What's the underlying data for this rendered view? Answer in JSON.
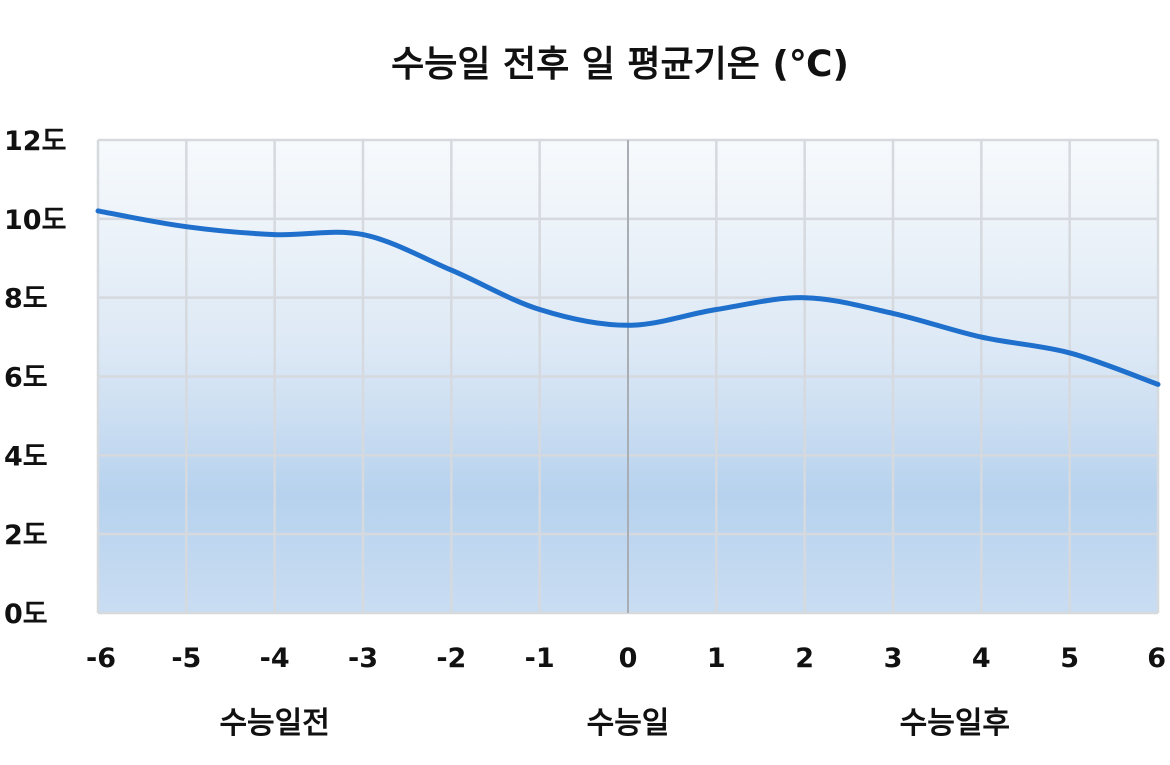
{
  "chart_data": {
    "type": "line",
    "title": "수능일 전후 일 평균기온 (℃)",
    "xlabel": "",
    "ylabel": "",
    "x": [
      -6,
      -5,
      -4,
      -3,
      -2,
      -1,
      0,
      1,
      2,
      3,
      4,
      5,
      6
    ],
    "x_tick_labels": [
      "-6",
      "-5",
      "-4",
      "-3",
      "-2",
      "-1",
      "0",
      "1",
      "2",
      "3",
      "4",
      "5",
      "6"
    ],
    "y_ticks": [
      0,
      2,
      4,
      6,
      8,
      10,
      12
    ],
    "y_tick_labels": [
      "0도",
      "2도",
      "4도",
      "6도",
      "8도",
      "10도",
      "12도"
    ],
    "ylim": [
      0,
      12
    ],
    "xlim": [
      -6,
      6
    ],
    "grid": true,
    "series": [
      {
        "values": [
          10.2,
          9.8,
          9.6,
          9.6,
          8.7,
          7.7,
          7.3,
          7.7,
          8.0,
          7.6,
          7.0,
          6.6,
          5.8
        ]
      }
    ],
    "group_labels": [
      {
        "text": "수능일전",
        "x": -4
      },
      {
        "text": "수능일",
        "x": 0
      },
      {
        "text": "수능일후",
        "x": 3.7
      }
    ],
    "colors": {
      "line": "#1f6fcc",
      "grid": "#d6d9de",
      "zero_line": "#a9adb4",
      "fill_top": "#f7fafc",
      "fill_mid": "#dfe9f6",
      "fill_bottom": "#b6d2ee"
    }
  }
}
